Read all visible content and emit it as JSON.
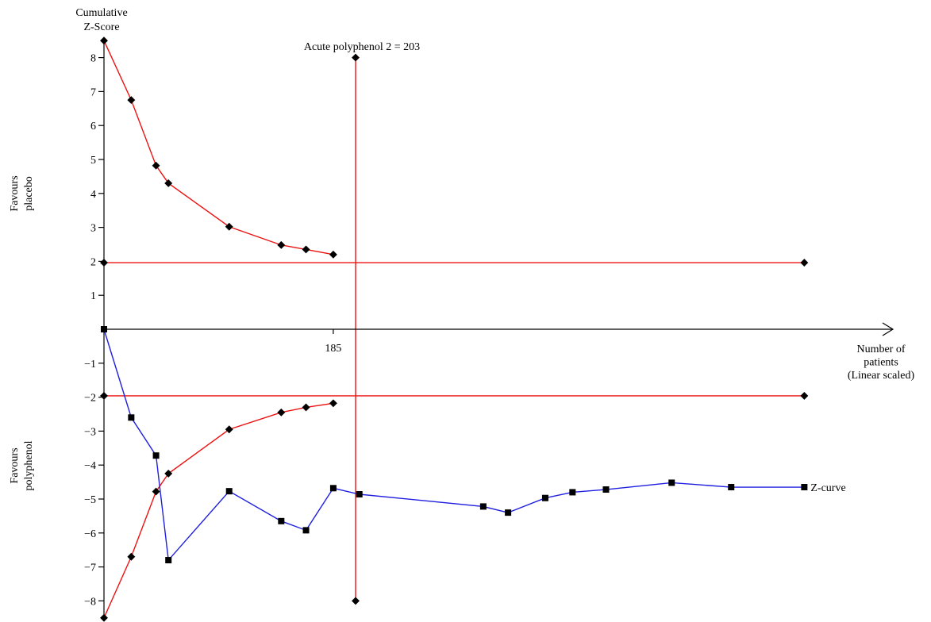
{
  "chart_data": {
    "type": "line",
    "y_axis": {
      "title_lines": [
        "Cumulative",
        "Z-Score"
      ],
      "ylim": [
        -8.5,
        8.5
      ],
      "ticks": [
        8,
        7,
        6,
        5,
        4,
        3,
        2,
        1,
        -1,
        -2,
        -3,
        -4,
        -5,
        -6,
        -7,
        -8
      ]
    },
    "x_axis": {
      "title_lines": [
        "Number of",
        "patients",
        "(Linear scaled)"
      ],
      "xlim": [
        0,
        560
      ],
      "tick_values": [
        185
      ],
      "tick_labels": [
        "185"
      ]
    },
    "side_labels": {
      "top": [
        "Favours",
        "placebo"
      ],
      "bottom": [
        "Favours",
        "polyphenol"
      ]
    },
    "colors": {
      "boundary": "#ee1111",
      "z_curve": "#1f1fe0",
      "axis": "#000000",
      "markers": "#000000"
    },
    "required_information_size": {
      "label": "Acute polyphenol 2 = 203",
      "x": 203,
      "y_range": [
        -8,
        8
      ]
    },
    "conventional_boundaries": [
      {
        "name": "upper",
        "points": [
          [
            0,
            1.96
          ],
          [
            565,
            1.96
          ]
        ]
      },
      {
        "name": "lower",
        "points": [
          [
            0,
            -1.96
          ],
          [
            565,
            -1.96
          ]
        ]
      }
    ],
    "monitoring_boundaries": [
      {
        "name": "upper",
        "x": [
          0,
          22,
          42,
          52,
          101,
          143,
          163,
          185
        ],
        "y": [
          8.5,
          6.75,
          4.82,
          4.3,
          3.02,
          2.48,
          2.35,
          2.2
        ]
      },
      {
        "name": "lower",
        "x": [
          0,
          22,
          42,
          52,
          101,
          143,
          163,
          185
        ],
        "y": [
          -8.5,
          -6.7,
          -4.78,
          -4.25,
          -2.95,
          -2.45,
          -2.3,
          -2.18
        ]
      }
    ],
    "series": [
      {
        "name": "Z-curve",
        "x": [
          0,
          22,
          42,
          52,
          101,
          143,
          163,
          185,
          206,
          306,
          326,
          356,
          378,
          405,
          458,
          506,
          565
        ],
        "y": [
          0,
          -2.6,
          -3.72,
          -6.8,
          -4.77,
          -5.65,
          -5.92,
          -4.68,
          -4.86,
          -5.22,
          -5.4,
          -4.97,
          -4.8,
          -4.72,
          -4.52,
          -4.65,
          -4.65
        ]
      }
    ]
  }
}
